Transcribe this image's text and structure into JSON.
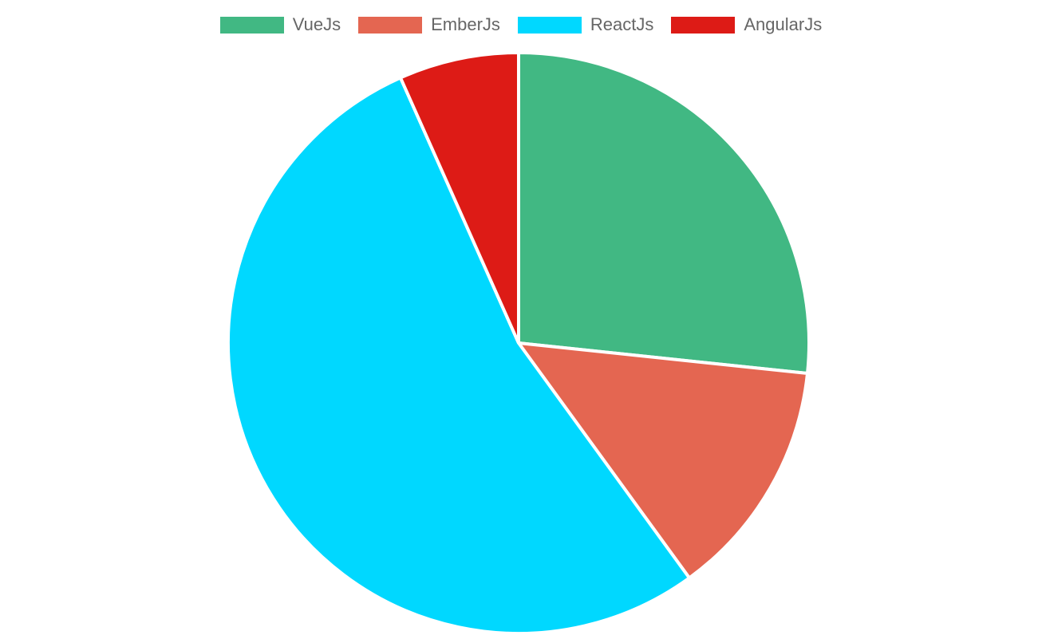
{
  "chart_data": {
    "type": "pie",
    "title": "",
    "labels": [
      "VueJs",
      "EmberJs",
      "ReactJs",
      "AngularJs"
    ],
    "values": [
      40,
      20,
      80,
      10
    ],
    "colors": [
      "#41B883",
      "#E46651",
      "#00D8FF",
      "#DD1B16"
    ],
    "slice_border_color": "#FFFFFF",
    "legend_position": "top",
    "legend_text_color": "#666666",
    "start_angle_deg": 0,
    "direction": "clockwise",
    "background": "#FFFFFF"
  }
}
